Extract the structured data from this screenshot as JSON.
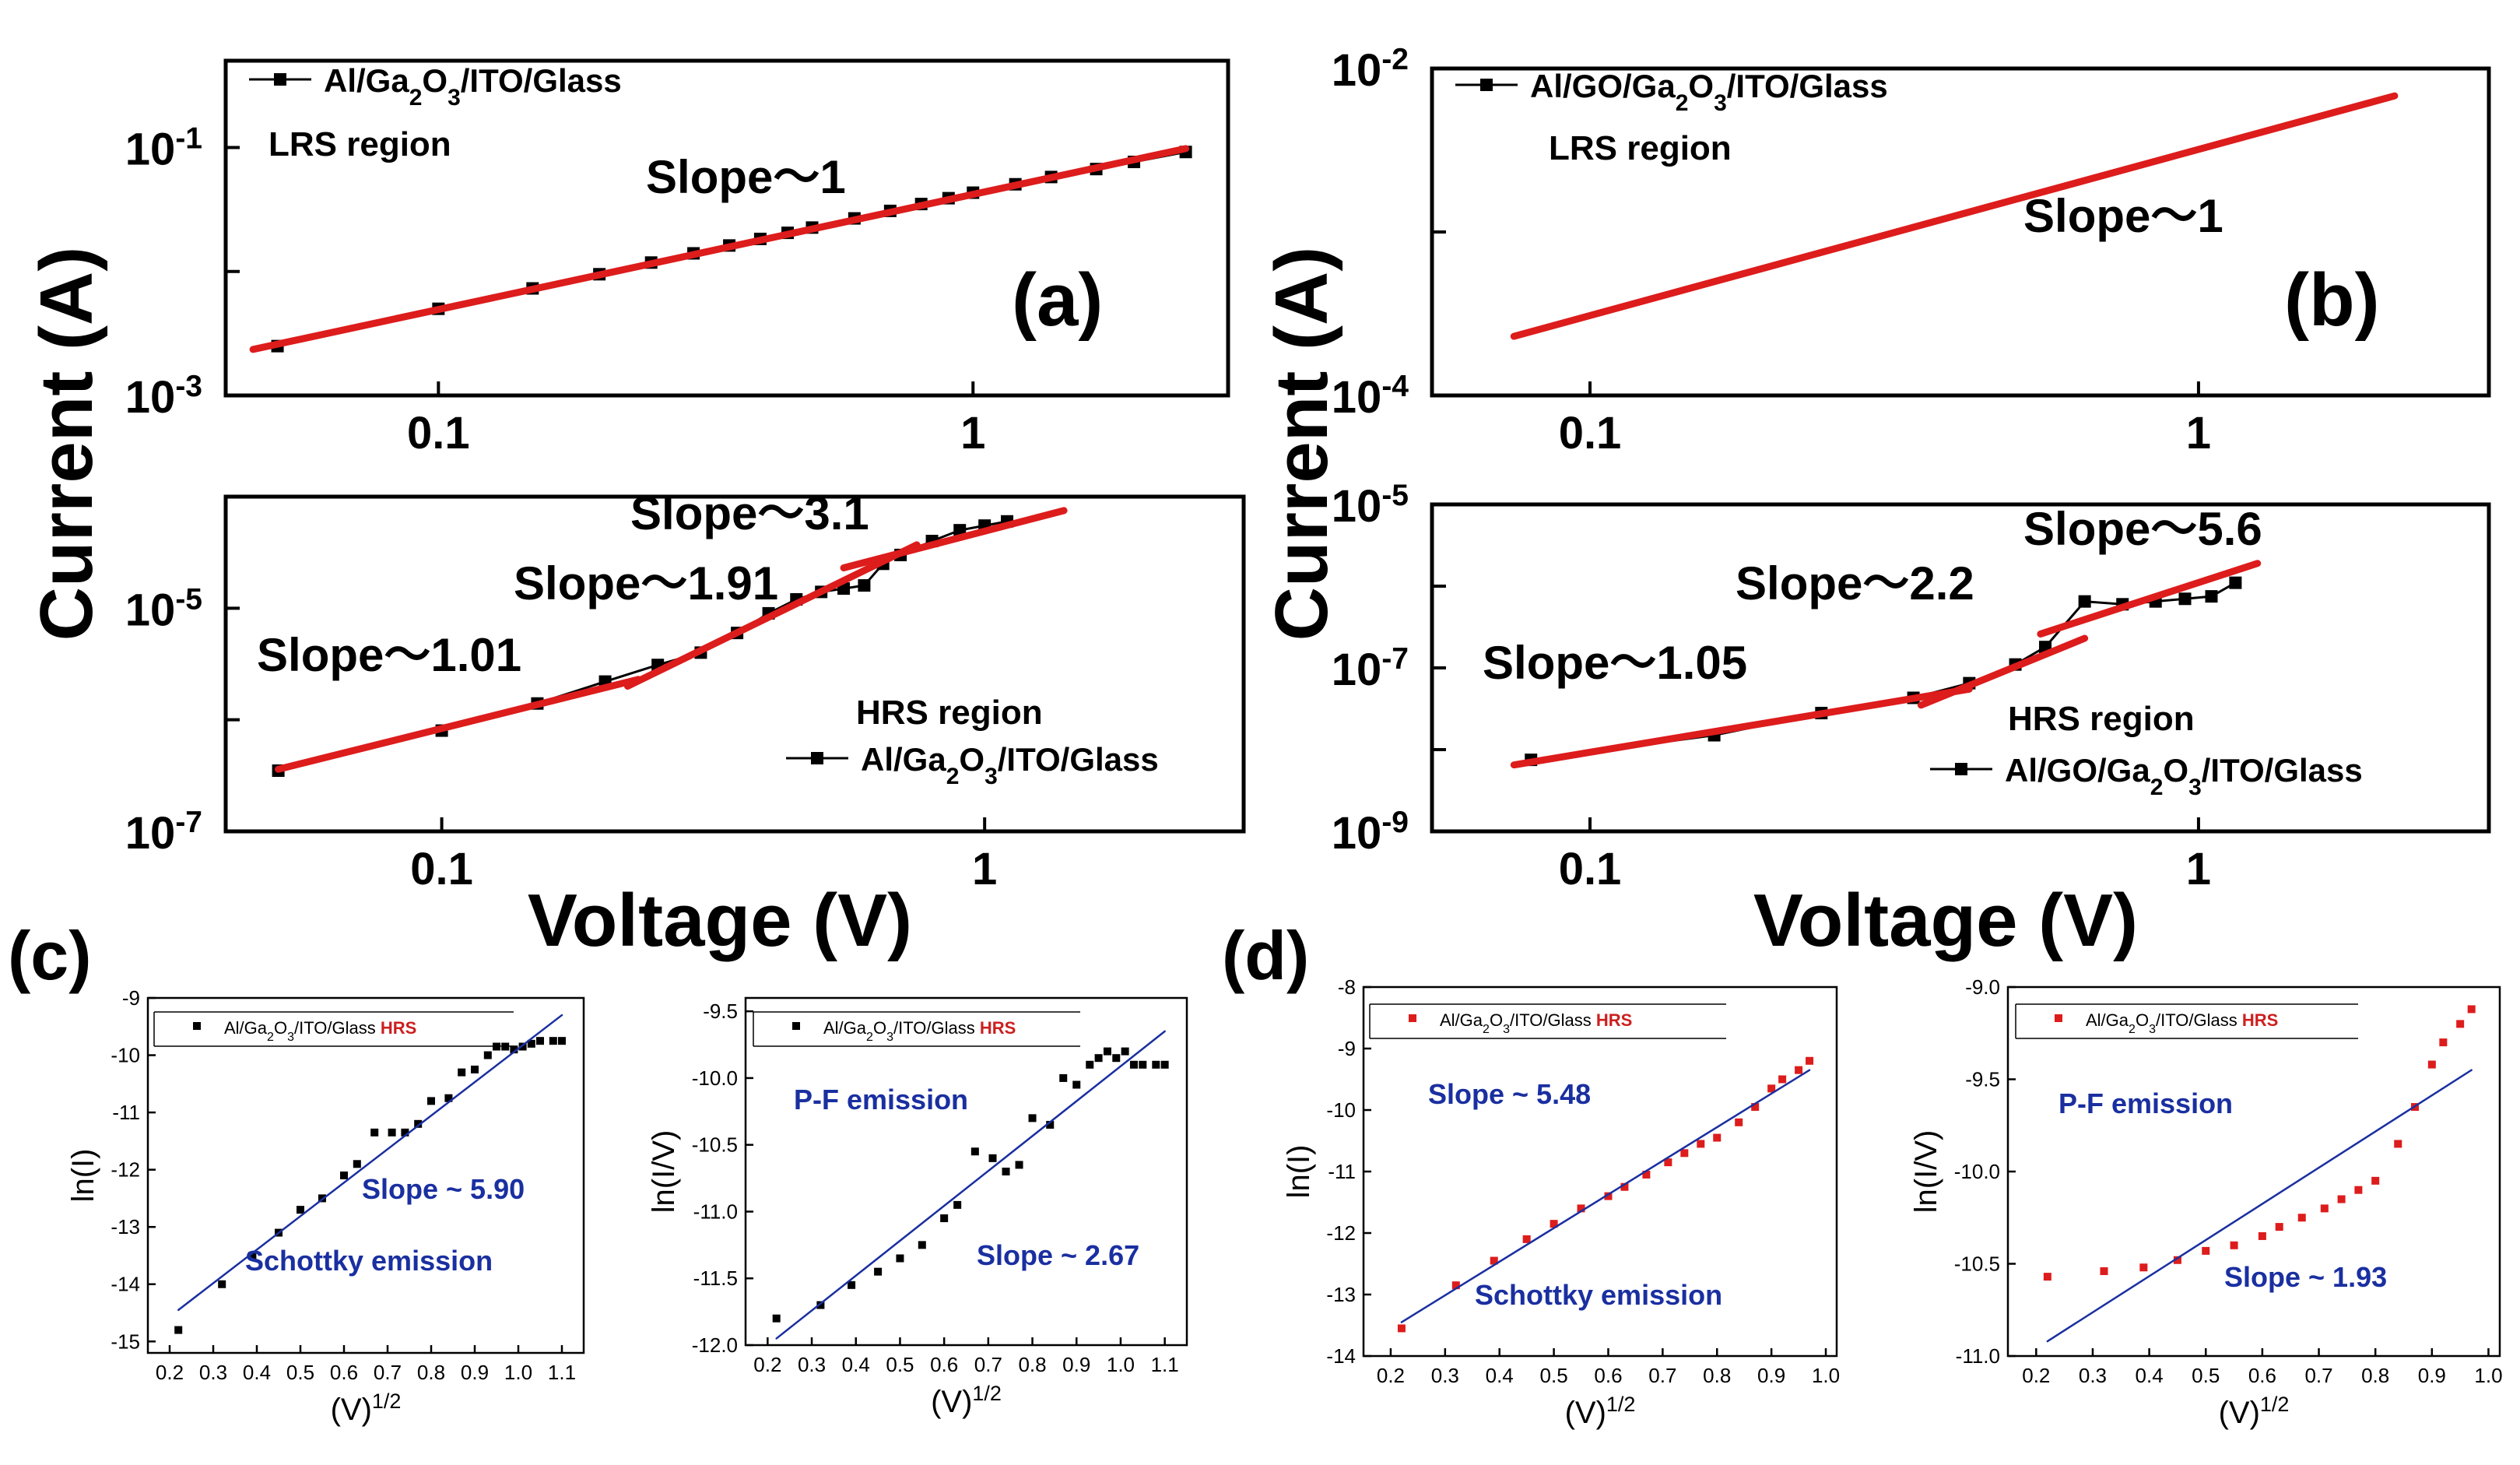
{
  "colors": {
    "fit_red": "#dd1c1c",
    "fit_blue": "#1a2fa0",
    "label_blue": "#1a2fa0",
    "hrs_red": "#cc1f1f",
    "marker_black": "#000000",
    "marker_red": "#dd1c1c"
  },
  "shared_labels": {
    "ylabel_left": "Current (A)",
    "ylabel_right": "Current (A)",
    "xlabel_left": "Voltage (V)",
    "xlabel_right": "Voltage (V)"
  },
  "chart_data": [
    {
      "id": "a",
      "type": "line",
      "panel_label": "(a)",
      "xscale": "log",
      "yscale": "log",
      "xlim": [
        0.04,
        3.0
      ],
      "ylim": [
        0.001,
        0.5
      ],
      "ylim_exp": [
        -3,
        -0.3
      ],
      "xticks": [
        0.1,
        1
      ],
      "xtick_labels": [
        "0.1",
        "1"
      ],
      "yticks_exp": [
        -3,
        -2,
        -1
      ],
      "ytick_labels": [
        "10-3",
        "",
        "10-1"
      ],
      "ytick_label_parts": [
        {
          "base": "10",
          "exp": "-3"
        },
        {
          "base": "10",
          "exp": "-1"
        }
      ],
      "legend": "Al/Ga2O3/ITO/Glass",
      "legend_parts": [
        "Al/Ga",
        "2",
        "O",
        "3",
        "/ITO/Glass"
      ],
      "region_label": "LRS region",
      "annotations": [
        "Slope～1"
      ],
      "series": [
        {
          "name": "data",
          "x": [
            0.05,
            0.1,
            0.15,
            0.2,
            0.25,
            0.3,
            0.35,
            0.4,
            0.45,
            0.5,
            0.6,
            0.7,
            0.8,
            0.9,
            1.0,
            1.2,
            1.4,
            1.7,
            2.0,
            2.5
          ],
          "y": [
            0.0025,
            0.005,
            0.0073,
            0.0095,
            0.0118,
            0.014,
            0.0162,
            0.0183,
            0.0205,
            0.0226,
            0.0268,
            0.0308,
            0.035,
            0.039,
            0.0432,
            0.0505,
            0.0578,
            0.067,
            0.0765,
            0.092
          ]
        },
        {
          "name": "fit",
          "x": [
            0.045,
            2.5
          ],
          "y": [
            0.00235,
            0.098
          ]
        }
      ]
    },
    {
      "id": "b",
      "type": "line",
      "panel_label": "(b)",
      "xscale": "log",
      "yscale": "log",
      "xlim": [
        0.055,
        3.0
      ],
      "ylim": [
        0.0001,
        0.01
      ],
      "ylim_exp": [
        -4,
        -2
      ],
      "xticks": [
        0.1,
        1
      ],
      "xtick_labels": [
        "0.1",
        "1"
      ],
      "yticks_exp": [
        -4,
        -3,
        -2
      ],
      "ytick_labels": [
        "10-4",
        "",
        "10-2"
      ],
      "ytick_label_parts": [
        {
          "base": "10",
          "exp": "-4"
        },
        {
          "base": "10",
          "exp": "-2"
        }
      ],
      "legend": "Al/GO/Ga2O3/ITO/Glass",
      "legend_parts": [
        "Al/GO/Ga",
        "2",
        "O",
        "3",
        "/ITO/Glass"
      ],
      "region_label": "LRS region",
      "annotations": [
        "Slope～1"
      ],
      "series": [
        {
          "name": "fit",
          "x": [
            0.075,
            2.1
          ],
          "y": [
            0.00023,
            0.0068
          ]
        }
      ]
    },
    {
      "id": "a-hrs",
      "type": "line",
      "panel_label": "",
      "xscale": "log",
      "yscale": "log",
      "xlim": [
        0.04,
        3.0
      ],
      "ylim": [
        1e-07,
        0.0001
      ],
      "ylim_exp": [
        -7,
        -4
      ],
      "xticks": [
        0.1,
        1
      ],
      "xtick_labels": [
        "0.1",
        "1"
      ],
      "yticks_exp": [
        -7,
        -6,
        -5
      ],
      "ytick_labels": [
        "10-7",
        "",
        "10-5"
      ],
      "ytick_label_parts": [
        {
          "base": "10",
          "exp": "-7"
        },
        {
          "base": "10",
          "exp": "-5"
        }
      ],
      "legend": "Al/Ga2O3/ITO/Glass",
      "legend_parts": [
        "Al/Ga",
        "2",
        "O",
        "3",
        "/ITO/Glass"
      ],
      "region_label": "HRS region",
      "annotations": [
        "Slope～3.1",
        "Slope～1.91",
        "Slope～1.01"
      ],
      "series": [
        {
          "name": "data",
          "x": [
            0.05,
            0.1,
            0.15,
            0.2,
            0.25,
            0.3,
            0.35,
            0.4,
            0.45,
            0.5,
            0.55,
            0.6,
            0.65,
            0.7,
            0.8,
            0.9,
            1.0,
            1.1
          ],
          "y": [
            3.5e-07,
            8e-07,
            1.4e-06,
            2.2e-06,
            3.1e-06,
            4e-06,
            6e-06,
            9e-06,
            1.2e-05,
            1.4e-05,
            1.5e-05,
            1.6e-05,
            2.5e-05,
            3e-05,
            4e-05,
            5e-05,
            5.5e-05,
            6e-05
          ]
        },
        {
          "name": "fit1",
          "x": [
            0.05,
            0.23
          ],
          "y": [
            3.6e-07,
            2.3e-06
          ]
        },
        {
          "name": "fit2",
          "x": [
            0.22,
            0.75
          ],
          "y": [
            2e-06,
            3.7e-05
          ]
        },
        {
          "name": "fit3",
          "x": [
            0.55,
            1.4
          ],
          "y": [
            2.3e-05,
            7.5e-05
          ]
        }
      ]
    },
    {
      "id": "b-hrs",
      "type": "line",
      "panel_label": "",
      "xscale": "log",
      "yscale": "log",
      "xlim": [
        0.055,
        3.0
      ],
      "ylim": [
        1e-09,
        1e-05
      ],
      "ylim_exp": [
        -9,
        -5
      ],
      "xticks": [
        0.1,
        1
      ],
      "xtick_labels": [
        "0.1",
        "1"
      ],
      "yticks_exp": [
        -9,
        -8,
        -7,
        -6,
        -5
      ],
      "ytick_labels": [
        "10-9",
        "",
        "10-7",
        "",
        "10-5"
      ],
      "ytick_label_parts": [
        {
          "base": "10",
          "exp": "-9"
        },
        {
          "base": "10",
          "exp": "-7"
        },
        {
          "base": "10",
          "exp": "-5"
        }
      ],
      "legend": "Al/GO/Ga2O3/ITO/Glass",
      "legend_parts": [
        "Al/GO/Ga",
        "2",
        "O",
        "3",
        "/ITO/Glass"
      ],
      "region_label": "HRS region",
      "annotations": [
        "Slope～5.6",
        "Slope～2.2",
        "Slope～1.05"
      ],
      "series": [
        {
          "name": "data",
          "x": [
            0.08,
            0.16,
            0.24,
            0.34,
            0.42,
            0.5,
            0.56,
            0.65,
            0.75,
            0.85,
            0.95,
            1.05,
            1.15
          ],
          "y": [
            7.5e-09,
            1.5e-08,
            2.8e-08,
            4.3e-08,
            6.5e-08,
            1.1e-07,
            1.8e-07,
            6.5e-07,
            6e-07,
            6.5e-07,
            7e-07,
            7.5e-07,
            1.1e-06
          ]
        },
        {
          "name": "fit1",
          "x": [
            0.075,
            0.42
          ],
          "y": [
            6.5e-09,
            5.5e-08
          ]
        },
        {
          "name": "fit2",
          "x": [
            0.35,
            0.65
          ],
          "y": [
            3.5e-08,
            2.3e-07
          ]
        },
        {
          "name": "fit3",
          "x": [
            0.55,
            1.25
          ],
          "y": [
            2.6e-07,
            1.9e-06
          ]
        }
      ]
    },
    {
      "id": "c1",
      "type": "scatter",
      "panel_label": "(c)",
      "xlabel": "(V)1/2",
      "xlabel_base": "(V)",
      "xlabel_exp": "1/2",
      "ylabel": "ln(I)",
      "xlim": [
        0.15,
        1.15
      ],
      "ylim": [
        -15.2,
        -9.0
      ],
      "xticks": [
        0.2,
        0.3,
        0.4,
        0.5,
        0.6,
        0.7,
        0.8,
        0.9,
        1.0,
        1.1
      ],
      "xtick_labels": [
        "0.2",
        "0.3",
        "0.4",
        "0.5",
        "0.6",
        "0.7",
        "0.8",
        "0.9",
        "1.0",
        "1.1"
      ],
      "yticks": [
        -15,
        -14,
        -13,
        -12,
        -11,
        -10,
        -9
      ],
      "ytick_labels": [
        "-15",
        "-14",
        "-13",
        "-12",
        "-11",
        "-10",
        "-9"
      ],
      "legend": "Al/Ga2O3/ITO/Glass HRS",
      "legend_parts": [
        "Al/Ga",
        "2",
        "O",
        "3",
        "/ITO/Glass"
      ],
      "legend_hrs": "HRS",
      "annotations": [
        "Slope ~ 5.90",
        "Schottky emission"
      ],
      "series": [
        {
          "name": "data",
          "x": [
            0.22,
            0.32,
            0.39,
            0.45,
            0.5,
            0.55,
            0.6,
            0.63,
            0.67,
            0.71,
            0.74,
            0.77,
            0.8,
            0.84,
            0.87,
            0.9,
            0.93,
            0.95,
            0.97,
            0.99,
            1.01,
            1.03,
            1.05,
            1.08,
            1.1
          ],
          "y": [
            -14.8,
            -14.0,
            -13.5,
            -13.1,
            -12.7,
            -12.5,
            -12.1,
            -11.9,
            -11.35,
            -11.35,
            -11.35,
            -11.2,
            -10.8,
            -10.75,
            -10.3,
            -10.25,
            -10.0,
            -9.85,
            -9.85,
            -9.9,
            -9.85,
            -9.8,
            -9.75,
            -9.75,
            -9.75
          ]
        },
        {
          "name": "fit",
          "x": [
            0.22,
            1.1
          ],
          "y": [
            -14.45,
            -9.3
          ]
        }
      ]
    },
    {
      "id": "c2",
      "type": "scatter",
      "panel_label": "",
      "xlabel": "(V)1/2",
      "xlabel_base": "(V)",
      "xlabel_exp": "1/2",
      "ylabel": "ln(I/V)",
      "xlim": [
        0.15,
        1.15
      ],
      "ylim": [
        -12.0,
        -9.4
      ],
      "xticks": [
        0.2,
        0.3,
        0.4,
        0.5,
        0.6,
        0.7,
        0.8,
        0.9,
        1.0,
        1.1
      ],
      "xtick_labels": [
        "0.2",
        "0.3",
        "0.4",
        "0.5",
        "0.6",
        "0.7",
        "0.8",
        "0.9",
        "1.0",
        "1.1"
      ],
      "yticks": [
        -12.0,
        -11.5,
        -11.0,
        -10.5,
        -10.0,
        -9.5
      ],
      "ytick_labels": [
        "-12.0",
        "-11.5",
        "-11.0",
        "-10.5",
        "-10.0",
        "-9.5"
      ],
      "legend": "Al/Ga2O3/ITO/Glass HRS",
      "legend_parts": [
        "Al/Ga",
        "2",
        "O",
        "3",
        "/ITO/Glass"
      ],
      "legend_hrs": "HRS",
      "annotations": [
        "P-F emission",
        "Slope ~ 2.67"
      ],
      "series": [
        {
          "name": "data",
          "x": [
            0.22,
            0.32,
            0.39,
            0.45,
            0.5,
            0.55,
            0.6,
            0.63,
            0.67,
            0.71,
            0.74,
            0.77,
            0.8,
            0.84,
            0.87,
            0.9,
            0.93,
            0.95,
            0.97,
            0.99,
            1.01,
            1.03,
            1.05,
            1.08,
            1.1
          ],
          "y": [
            -11.8,
            -11.7,
            -11.55,
            -11.45,
            -11.35,
            -11.25,
            -11.05,
            -10.95,
            -10.55,
            -10.6,
            -10.7,
            -10.65,
            -10.3,
            -10.35,
            -10.0,
            -10.05,
            -9.9,
            -9.85,
            -9.8,
            -9.85,
            -9.8,
            -9.9,
            -9.9,
            -9.9,
            -9.9
          ]
        },
        {
          "name": "fit",
          "x": [
            0.22,
            1.1
          ],
          "y": [
            -11.95,
            -9.65
          ]
        }
      ]
    },
    {
      "id": "d1",
      "type": "scatter",
      "panel_label": "(d)",
      "xlabel": "(V)1/2",
      "xlabel_base": "(V)",
      "xlabel_exp": "1/2",
      "ylabel": "ln(I)",
      "xlim": [
        0.15,
        1.02
      ],
      "ylim": [
        -14.0,
        -8.0
      ],
      "xticks": [
        0.2,
        0.3,
        0.4,
        0.5,
        0.6,
        0.7,
        0.8,
        0.9,
        1.0
      ],
      "xtick_labels": [
        "0.2",
        "0.3",
        "0.4",
        "0.5",
        "0.6",
        "0.7",
        "0.8",
        "0.9",
        "1.0"
      ],
      "yticks": [
        -14,
        -13,
        -12,
        -11,
        -10,
        -9,
        -8
      ],
      "ytick_labels": [
        "-14",
        "-13",
        "-12",
        "-11",
        "-10",
        "-9",
        "-8"
      ],
      "legend": "Al/Ga2O3/ITO/Glass HRS",
      "legend_parts": [
        "Al/Ga",
        "2",
        "O",
        "3",
        "/ITO/Glass"
      ],
      "legend_hrs": "HRS",
      "annotations": [
        "Slope ~ 5.48",
        "Schottky emission"
      ],
      "series": [
        {
          "name": "data",
          "x": [
            0.22,
            0.32,
            0.39,
            0.45,
            0.5,
            0.55,
            0.6,
            0.63,
            0.67,
            0.71,
            0.74,
            0.77,
            0.8,
            0.84,
            0.87,
            0.9,
            0.92,
            0.95,
            0.97
          ],
          "y": [
            -13.55,
            -12.85,
            -12.45,
            -12.1,
            -11.85,
            -11.6,
            -11.4,
            -11.25,
            -11.05,
            -10.85,
            -10.7,
            -10.55,
            -10.45,
            -10.2,
            -9.95,
            -9.65,
            -9.5,
            -9.35,
            -9.2
          ]
        },
        {
          "name": "fit",
          "x": [
            0.22,
            0.97
          ],
          "y": [
            -13.45,
            -9.35
          ]
        }
      ]
    },
    {
      "id": "d2",
      "type": "scatter",
      "panel_label": "",
      "xlabel": "(V)1/2",
      "xlabel_base": "(V)",
      "xlabel_exp": "1/2",
      "ylabel": "ln(I/V)",
      "xlim": [
        0.15,
        1.02
      ],
      "ylim": [
        -11.0,
        -9.0
      ],
      "xticks": [
        0.2,
        0.3,
        0.4,
        0.5,
        0.6,
        0.7,
        0.8,
        0.9,
        1.0
      ],
      "xtick_labels": [
        "0.2",
        "0.3",
        "0.4",
        "0.5",
        "0.6",
        "0.7",
        "0.8",
        "0.9",
        "1.0"
      ],
      "yticks": [
        -11.0,
        -10.5,
        -10.0,
        -9.5,
        -9.0
      ],
      "ytick_labels": [
        "-11.0",
        "-10.5",
        "-10.0",
        "-9.5",
        "-9.0"
      ],
      "legend": "Al/Ga2O3/ITO/Glass HRS",
      "legend_parts": [
        "Al/Ga",
        "2",
        "O",
        "3",
        "/ITO/Glass"
      ],
      "legend_hrs": "HRS",
      "annotations": [
        "P-F emission",
        "Slope ~ 1.93"
      ],
      "series": [
        {
          "name": "data",
          "x": [
            0.22,
            0.32,
            0.39,
            0.45,
            0.5,
            0.55,
            0.6,
            0.63,
            0.67,
            0.71,
            0.74,
            0.77,
            0.8,
            0.84,
            0.87,
            0.9,
            0.92,
            0.95,
            0.97
          ],
          "y": [
            -10.57,
            -10.54,
            -10.52,
            -10.48,
            -10.43,
            -10.4,
            -10.35,
            -10.3,
            -10.25,
            -10.2,
            -10.15,
            -10.1,
            -10.05,
            -9.85,
            -9.65,
            -9.42,
            -9.3,
            -9.2,
            -9.12
          ]
        },
        {
          "name": "fit",
          "x": [
            0.22,
            0.97
          ],
          "y": [
            -10.92,
            -9.45
          ]
        }
      ]
    }
  ]
}
